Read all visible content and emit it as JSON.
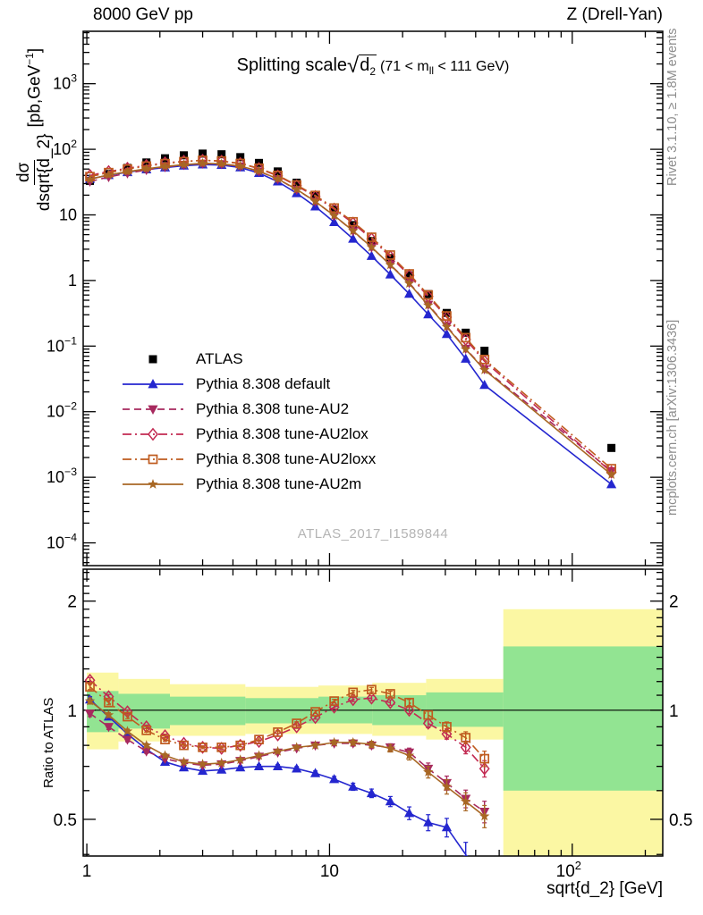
{
  "header": {
    "left": "8000 GeV pp",
    "right": "Z (Drell-Yan)"
  },
  "plot_title": {
    "prefix": "Splitting scale",
    "sqrt_arg": "d",
    "sqrt_sub": "2",
    "cond_pre": "(71 < m",
    "cond_sub": "ll",
    "cond_post": " < 111 GeV)"
  },
  "watermark": "ATLAS_2017_I1589844",
  "side_notes": {
    "rivet": "Rivet 3.1.10, ≥ 1.8M events",
    "mcplots": "mcplots.cern.ch [arXiv:1306.3436]"
  },
  "axes": {
    "y_main_label": {
      "numerator": "dσ",
      "denominator": "dsqrt{d_2}",
      "units_pre": "[pb,GeV",
      "units_sup": "−1",
      "units_post": "]"
    },
    "x_label": "sqrt{d_2} [GeV]",
    "ratio_label": "Ratio to ATLAS"
  },
  "chart_data": {
    "type": "line",
    "title": "Splitting scale sqrt(d_2) (71 < m_ll < 111 GeV)",
    "xlabel": "sqrt{d_2} [GeV]",
    "ylabel": "dσ/dsqrt{d_2} [pb,GeV−1]",
    "ratio_ylabel": "Ratio to ATLAS",
    "x_scale": "log",
    "y_scale": "log",
    "legend_position": "upper-left-inside",
    "xlim": [
      0.966,
      236
    ],
    "main_ylim": [
      4.5e-05,
      6300
    ],
    "ratio_ylim": [
      0.396,
      2.45
    ],
    "x_ticks": [
      {
        "v": 1,
        "base": "1",
        "exp": ""
      },
      {
        "v": 10,
        "base": "10",
        "exp": ""
      },
      {
        "v": 100,
        "base": "10",
        "exp": "2"
      }
    ],
    "main_y_ticks": [
      {
        "v": 1000,
        "base": "10",
        "exp": "3"
      },
      {
        "v": 100,
        "base": "10",
        "exp": "2"
      },
      {
        "v": 10,
        "base": "10",
        "exp": ""
      },
      {
        "v": 1,
        "base": "1",
        "exp": ""
      },
      {
        "v": 0.1,
        "base": "10",
        "exp": "−1"
      },
      {
        "v": 0.01,
        "base": "10",
        "exp": "−2"
      },
      {
        "v": 0.001,
        "base": "10",
        "exp": "−3"
      },
      {
        "v": 0.0001,
        "base": "10",
        "exp": "−4"
      }
    ],
    "ratio_y_ticks": [
      {
        "v": 2,
        "label": "2"
      },
      {
        "v": 1,
        "label": "1"
      },
      {
        "v": 0.5,
        "label": "0.5"
      }
    ],
    "x": [
      1.03,
      1.23,
      1.47,
      1.76,
      2.1,
      2.51,
      3.0,
      3.59,
      4.29,
      5.12,
      6.12,
      7.32,
      8.74,
      10.45,
      12.5,
      14.9,
      17.8,
      21.3,
      25.5,
      30.4,
      36.4,
      43.5
    ],
    "x_last": 145,
    "ratio_err": [
      0.02,
      0.015,
      0.012,
      0.01,
      0.009,
      0.008,
      0.007,
      0.007,
      0.007,
      0.008,
      0.008,
      0.009,
      0.01,
      0.012,
      0.014,
      0.016,
      0.018,
      0.021,
      0.025,
      0.028,
      0.032,
      0.036
    ],
    "series": [
      {
        "name": "ATLAS",
        "color": "#000000",
        "marker": "square-filled",
        "line": "none",
        "y": [
          33,
          42,
          52,
          63,
          73,
          81,
          86,
          84,
          76,
          62,
          46,
          31,
          20,
          12,
          7.0,
          4.0,
          2.2,
          1.2,
          0.62,
          0.32,
          0.16,
          0.085
        ],
        "y_last": 0.0028
      },
      {
        "name": "Pythia 8.308 default",
        "color": "#2426cf",
        "marker": "triangle-up-filled",
        "line": "solid",
        "ratio": [
          1.07,
          0.96,
          0.86,
          0.78,
          0.72,
          0.695,
          0.68,
          0.685,
          0.695,
          0.7,
          0.7,
          0.69,
          0.67,
          0.645,
          0.615,
          0.59,
          0.56,
          0.52,
          0.49,
          0.475,
          0.4,
          0.3
        ],
        "y_last": 0.00078
      },
      {
        "name": "Pythia 8.308 tune-AU2",
        "color": "#a7295e",
        "marker": "triangle-down-filled",
        "line": "dashed",
        "ratio": [
          0.98,
          0.9,
          0.83,
          0.77,
          0.735,
          0.715,
          0.705,
          0.71,
          0.725,
          0.745,
          0.765,
          0.785,
          0.8,
          0.81,
          0.81,
          0.8,
          0.79,
          0.765,
          0.69,
          0.63,
          0.57,
          0.525
        ],
        "y_last": 0.00125
      },
      {
        "name": "Pythia 8.308 tune-AU2lox",
        "color": "#c22a52",
        "marker": "diamond-open",
        "line": "dashdot",
        "ratio": [
          1.21,
          1.09,
          0.99,
          0.9,
          0.85,
          0.81,
          0.79,
          0.785,
          0.8,
          0.82,
          0.855,
          0.9,
          0.955,
          1.02,
          1.07,
          1.08,
          1.05,
          1.0,
          0.92,
          0.86,
          0.79,
          0.69
        ],
        "y_last": 0.0012
      },
      {
        "name": "Pythia 8.308 tune-AU2loxx",
        "color": "#bf5b1f",
        "marker": "square-open",
        "line": "dashdot",
        "ratio": [
          1.16,
          1.05,
          0.96,
          0.88,
          0.83,
          0.8,
          0.79,
          0.79,
          0.8,
          0.83,
          0.87,
          0.92,
          0.99,
          1.06,
          1.12,
          1.14,
          1.11,
          1.05,
          0.97,
          0.9,
          0.84,
          0.735
        ],
        "y_last": 0.00135
      },
      {
        "name": "Pythia 8.308 tune-AU2m",
        "color": "#a86724",
        "marker": "star-filled",
        "line": "solid",
        "ratio": [
          1.06,
          0.97,
          0.875,
          0.8,
          0.75,
          0.72,
          0.71,
          0.715,
          0.73,
          0.75,
          0.77,
          0.79,
          0.8,
          0.815,
          0.815,
          0.805,
          0.785,
          0.75,
          0.675,
          0.615,
          0.56,
          0.51
        ],
        "y_last": 0.0011
      }
    ],
    "ref_line": 1,
    "bands": {
      "green_color": "#92e492",
      "yellow_color": "#fbf7a3",
      "segments": [
        {
          "x0": 1.0,
          "x1": 1.35,
          "green": [
            0.87,
            1.13
          ],
          "yellow": [
            0.78,
            1.27
          ]
        },
        {
          "x0": 1.35,
          "x1": 2.2,
          "green": [
            0.89,
            1.11
          ],
          "yellow": [
            0.82,
            1.22
          ]
        },
        {
          "x0": 2.2,
          "x1": 4.5,
          "green": [
            0.91,
            1.09
          ],
          "yellow": [
            0.85,
            1.18
          ]
        },
        {
          "x0": 4.5,
          "x1": 9.0,
          "green": [
            0.92,
            1.08
          ],
          "yellow": [
            0.86,
            1.16
          ]
        },
        {
          "x0": 9.0,
          "x1": 15.0,
          "green": [
            0.92,
            1.09
          ],
          "yellow": [
            0.86,
            1.17
          ]
        },
        {
          "x0": 15.0,
          "x1": 25.0,
          "green": [
            0.91,
            1.1
          ],
          "yellow": [
            0.85,
            1.19
          ]
        },
        {
          "x0": 25.0,
          "x1": 52.0,
          "green": [
            0.9,
            1.12
          ],
          "yellow": [
            0.83,
            1.22
          ]
        },
        {
          "x0": 52.0,
          "x1": 236.0,
          "green": [
            0.6,
            1.5
          ],
          "yellow": [
            0.396,
            1.9
          ]
        }
      ]
    }
  }
}
